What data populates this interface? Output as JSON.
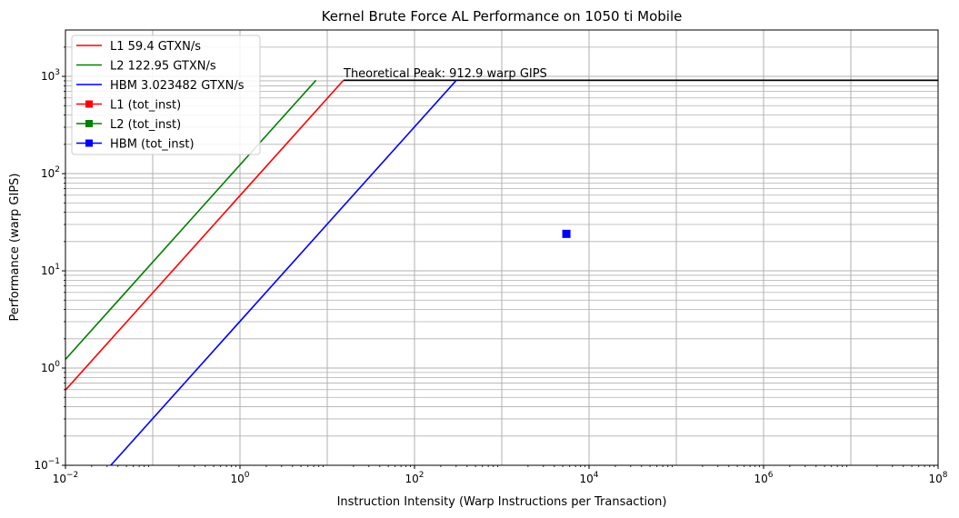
{
  "chart_data": {
    "type": "line",
    "title": "Kernel Brute Force AL Performance on 1050 ti Mobile",
    "xlabel": "Instruction Intensity (Warp Instructions per Transaction)",
    "ylabel": "Performance (warp GIPS)",
    "xscale": "log",
    "yscale": "log",
    "xlim": [
      0.01,
      100000000
    ],
    "ylim": [
      0.1,
      3000
    ],
    "grid": "both-major-minor-y",
    "legend_position": "top-left",
    "x_ticks": [
      {
        "base": "10",
        "exp": "−2",
        "value": 0.01
      },
      {
        "base": "10",
        "exp": "0",
        "value": 1
      },
      {
        "base": "10",
        "exp": "2",
        "value": 100
      },
      {
        "base": "10",
        "exp": "4",
        "value": 10000
      },
      {
        "base": "10",
        "exp": "6",
        "value": 1000000
      },
      {
        "base": "10",
        "exp": "8",
        "value": 100000000
      }
    ],
    "y_ticks": [
      {
        "base": "10",
        "exp": "−1",
        "value": 0.1
      },
      {
        "base": "10",
        "exp": "0",
        "value": 1
      },
      {
        "base": "10",
        "exp": "1",
        "value": 10
      },
      {
        "base": "10",
        "exp": "2",
        "value": 100
      },
      {
        "base": "10",
        "exp": "3",
        "value": 1000
      }
    ],
    "peak": {
      "value": 912.9,
      "label": "Theoretical Peak: 912.9 warp GIPS",
      "color": "#000000",
      "x_range": [
        15.37,
        100000000
      ]
    },
    "series": [
      {
        "name": "L1 59.4 GTXN/s",
        "kind": "roofline",
        "bandwidth": 59.4,
        "color": "#ff0000",
        "x_range": [
          0.01,
          15.37
        ]
      },
      {
        "name": "L2 122.95 GTXN/s",
        "kind": "roofline",
        "bandwidth": 122.95,
        "color": "#008000",
        "x_range": [
          0.01,
          7.425
        ]
      },
      {
        "name": "HBM 3.023482 GTXN/s",
        "kind": "roofline",
        "bandwidth": 3.023482,
        "color": "#0000ff",
        "x_range": [
          0.01,
          301.9
        ]
      },
      {
        "name": "L1 (tot_inst)",
        "kind": "point",
        "color": "#ff0000",
        "points": []
      },
      {
        "name": "L2 (tot_inst)",
        "kind": "point",
        "color": "#008000",
        "points": []
      },
      {
        "name": "HBM (tot_inst)",
        "kind": "point",
        "color": "#0000ff",
        "points": [
          [
            5500,
            24
          ]
        ]
      }
    ]
  }
}
